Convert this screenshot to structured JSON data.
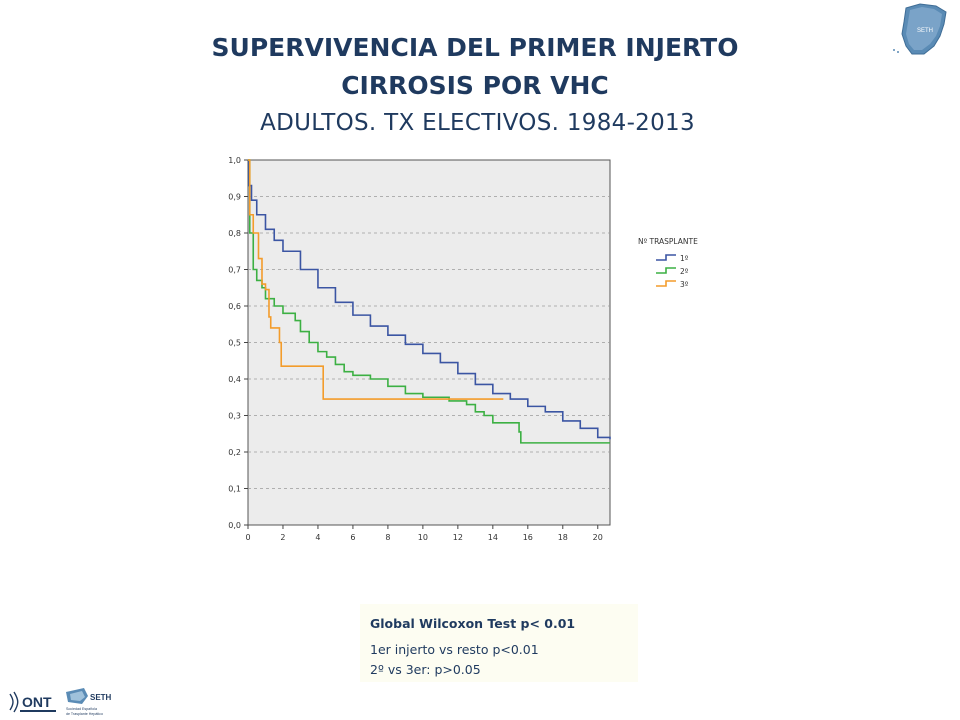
{
  "header": {
    "title_line1": "SUPERVIVENCIA DEL PRIMER INJERTO",
    "title_line2": "CIRROSIS POR VHC",
    "subtitle": "ADULTOS. TX ELECTIVOS. 1984-2013"
  },
  "chart_data": {
    "type": "line",
    "step": true,
    "x_ticks": [
      "0",
      "2",
      "4",
      "6",
      "8",
      "10",
      "12",
      "14",
      "16",
      "18",
      "20"
    ],
    "y_ticks": [
      "0,0",
      "0,1",
      "0,2",
      "0,3",
      "0,4",
      "0,5",
      "0,6",
      "0,7",
      "0,8",
      "0,9",
      "1,0"
    ],
    "xlim": [
      0,
      20.7
    ],
    "ylim": [
      0,
      1.0
    ],
    "grid": "horizontal-dashed",
    "legend_title": "Nº TRASPLANTE",
    "legend_position": "right",
    "series": [
      {
        "name": "1º",
        "color": "#3b55a3",
        "points": [
          [
            0,
            1.0
          ],
          [
            0.05,
            0.93
          ],
          [
            0.2,
            0.89
          ],
          [
            0.5,
            0.85
          ],
          [
            1,
            0.81
          ],
          [
            1.5,
            0.78
          ],
          [
            2,
            0.75
          ],
          [
            3,
            0.7
          ],
          [
            4,
            0.65
          ],
          [
            5,
            0.61
          ],
          [
            6,
            0.575
          ],
          [
            7,
            0.545
          ],
          [
            8,
            0.52
          ],
          [
            9,
            0.495
          ],
          [
            10,
            0.47
          ],
          [
            11,
            0.445
          ],
          [
            12,
            0.415
          ],
          [
            13,
            0.385
          ],
          [
            14,
            0.36
          ],
          [
            15,
            0.345
          ],
          [
            16,
            0.325
          ],
          [
            17,
            0.31
          ],
          [
            18,
            0.285
          ],
          [
            19,
            0.265
          ],
          [
            20,
            0.24
          ],
          [
            20.7,
            0.235
          ]
        ]
      },
      {
        "name": "2º",
        "color": "#3cb043",
        "points": [
          [
            0,
            1.0
          ],
          [
            0.1,
            0.8
          ],
          [
            0.3,
            0.7
          ],
          [
            0.5,
            0.67
          ],
          [
            0.8,
            0.65
          ],
          [
            1,
            0.62
          ],
          [
            1.5,
            0.6
          ],
          [
            2,
            0.58
          ],
          [
            2.7,
            0.56
          ],
          [
            3,
            0.53
          ],
          [
            3.5,
            0.5
          ],
          [
            4,
            0.475
          ],
          [
            4.5,
            0.46
          ],
          [
            5,
            0.44
          ],
          [
            5.5,
            0.42
          ],
          [
            6,
            0.41
          ],
          [
            7,
            0.4
          ],
          [
            8,
            0.38
          ],
          [
            9,
            0.36
          ],
          [
            10,
            0.35
          ],
          [
            11,
            0.35
          ],
          [
            11.5,
            0.34
          ],
          [
            12.5,
            0.33
          ],
          [
            13,
            0.31
          ],
          [
            13.5,
            0.3
          ],
          [
            14,
            0.28
          ],
          [
            15,
            0.28
          ],
          [
            15.5,
            0.255
          ],
          [
            15.6,
            0.225
          ],
          [
            20.7,
            0.225
          ]
        ]
      },
      {
        "name": "3º",
        "color": "#f39c2b",
        "points": [
          [
            0,
            1.0
          ],
          [
            0.1,
            0.85
          ],
          [
            0.3,
            0.8
          ],
          [
            0.6,
            0.73
          ],
          [
            0.8,
            0.66
          ],
          [
            1.0,
            0.645
          ],
          [
            1.2,
            0.57
          ],
          [
            1.3,
            0.54
          ],
          [
            1.8,
            0.5
          ],
          [
            1.9,
            0.435
          ],
          [
            4.2,
            0.435
          ],
          [
            4.3,
            0.345
          ],
          [
            14.6,
            0.345
          ]
        ]
      }
    ]
  },
  "stats": {
    "line1": "Global Wilcoxon Test  p< 0.01",
    "line2": "1er injerto vs resto p<0.01",
    "line3": "2º vs 3er: p>0.05"
  },
  "logos": {
    "ont": "ONT",
    "seth": "SETH",
    "seth_caption": "Sociedad Española de Trasplante Hepático"
  }
}
